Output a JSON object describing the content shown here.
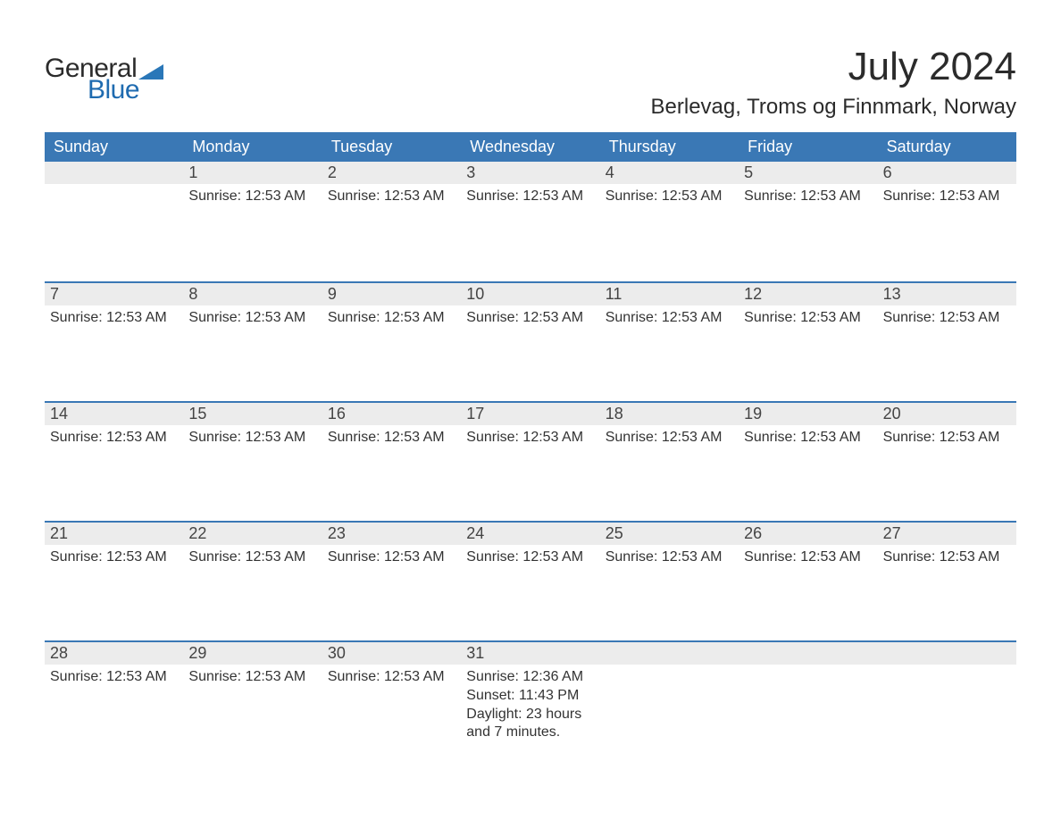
{
  "logo": {
    "text_general": "General",
    "text_blue": "Blue",
    "triangle_color": "#2a77b8"
  },
  "header": {
    "month_title": "July 2024",
    "location": "Berlevag, Troms og Finnmark, Norway"
  },
  "colors": {
    "header_bg": "#3a78b5",
    "header_text": "#ffffff",
    "day_number_bg": "#ececec",
    "row_border": "#3a78b5",
    "text": "#333333"
  },
  "weekdays": [
    "Sunday",
    "Monday",
    "Tuesday",
    "Wednesday",
    "Thursday",
    "Friday",
    "Saturday"
  ],
  "weeks": [
    [
      {
        "day": "",
        "lines": []
      },
      {
        "day": "1",
        "lines": [
          "Sunrise: 12:53 AM"
        ]
      },
      {
        "day": "2",
        "lines": [
          "Sunrise: 12:53 AM"
        ]
      },
      {
        "day": "3",
        "lines": [
          "Sunrise: 12:53 AM"
        ]
      },
      {
        "day": "4",
        "lines": [
          "Sunrise: 12:53 AM"
        ]
      },
      {
        "day": "5",
        "lines": [
          "Sunrise: 12:53 AM"
        ]
      },
      {
        "day": "6",
        "lines": [
          "Sunrise: 12:53 AM"
        ]
      }
    ],
    [
      {
        "day": "7",
        "lines": [
          "Sunrise: 12:53 AM"
        ]
      },
      {
        "day": "8",
        "lines": [
          "Sunrise: 12:53 AM"
        ]
      },
      {
        "day": "9",
        "lines": [
          "Sunrise: 12:53 AM"
        ]
      },
      {
        "day": "10",
        "lines": [
          "Sunrise: 12:53 AM"
        ]
      },
      {
        "day": "11",
        "lines": [
          "Sunrise: 12:53 AM"
        ]
      },
      {
        "day": "12",
        "lines": [
          "Sunrise: 12:53 AM"
        ]
      },
      {
        "day": "13",
        "lines": [
          "Sunrise: 12:53 AM"
        ]
      }
    ],
    [
      {
        "day": "14",
        "lines": [
          "Sunrise: 12:53 AM"
        ]
      },
      {
        "day": "15",
        "lines": [
          "Sunrise: 12:53 AM"
        ]
      },
      {
        "day": "16",
        "lines": [
          "Sunrise: 12:53 AM"
        ]
      },
      {
        "day": "17",
        "lines": [
          "Sunrise: 12:53 AM"
        ]
      },
      {
        "day": "18",
        "lines": [
          "Sunrise: 12:53 AM"
        ]
      },
      {
        "day": "19",
        "lines": [
          "Sunrise: 12:53 AM"
        ]
      },
      {
        "day": "20",
        "lines": [
          "Sunrise: 12:53 AM"
        ]
      }
    ],
    [
      {
        "day": "21",
        "lines": [
          "Sunrise: 12:53 AM"
        ]
      },
      {
        "day": "22",
        "lines": [
          "Sunrise: 12:53 AM"
        ]
      },
      {
        "day": "23",
        "lines": [
          "Sunrise: 12:53 AM"
        ]
      },
      {
        "day": "24",
        "lines": [
          "Sunrise: 12:53 AM"
        ]
      },
      {
        "day": "25",
        "lines": [
          "Sunrise: 12:53 AM"
        ]
      },
      {
        "day": "26",
        "lines": [
          "Sunrise: 12:53 AM"
        ]
      },
      {
        "day": "27",
        "lines": [
          "Sunrise: 12:53 AM"
        ]
      }
    ],
    [
      {
        "day": "28",
        "lines": [
          "Sunrise: 12:53 AM"
        ]
      },
      {
        "day": "29",
        "lines": [
          "Sunrise: 12:53 AM"
        ]
      },
      {
        "day": "30",
        "lines": [
          "Sunrise: 12:53 AM"
        ]
      },
      {
        "day": "31",
        "lines": [
          "Sunrise: 12:36 AM",
          "Sunset: 11:43 PM",
          "Daylight: 23 hours",
          "and 7 minutes."
        ]
      },
      {
        "day": "",
        "lines": []
      },
      {
        "day": "",
        "lines": []
      },
      {
        "day": "",
        "lines": []
      }
    ]
  ]
}
